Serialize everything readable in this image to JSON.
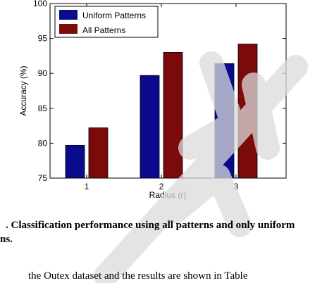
{
  "chart_data": {
    "type": "bar",
    "categories": [
      "1",
      "2",
      "3"
    ],
    "series": [
      {
        "name": "Uniform Patterns",
        "values": [
          79.7,
          89.7,
          91.4
        ],
        "color": "#0a0a8c"
      },
      {
        "name": "All Patterns",
        "values": [
          82.2,
          93.0,
          94.2
        ],
        "color": "#7b0a0a"
      }
    ],
    "xlabel": "Radius (r)",
    "ylabel": "Accuracy (%)",
    "ylim": [
      75,
      100
    ],
    "yticks": [
      75,
      80,
      85,
      90,
      95,
      100
    ],
    "grid": false,
    "legend": "top-left"
  },
  "caption": {
    "line1": ".   Classification performance using all patterns and only uniform",
    "line2": "ns."
  },
  "body_text": {
    "line1": "the  Outex dataset and the results are shown in Table"
  }
}
